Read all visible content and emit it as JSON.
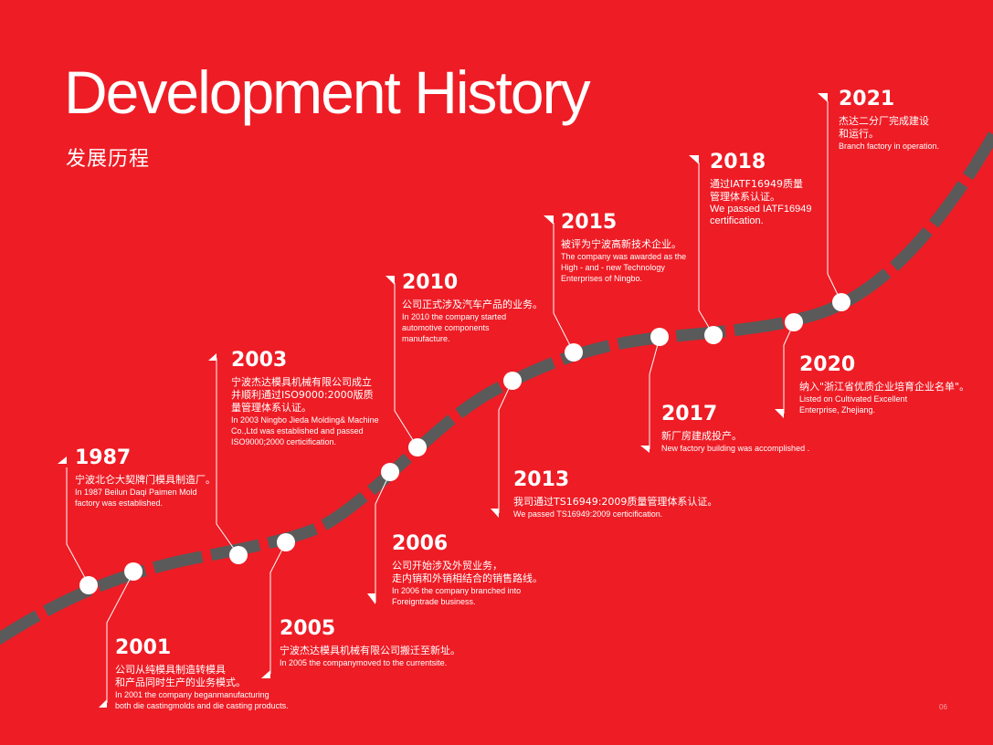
{
  "title": "Development History",
  "subtitle": "发展历程",
  "page_number": "06",
  "colors": {
    "background": "#ee1c25",
    "road": "#5a5a5a",
    "marker": "#ffffff",
    "text": "#ffffff"
  },
  "events": [
    {
      "year": "1987",
      "cn": "宁波北仑大契牌门模具制造厂。",
      "en": "In 1987  Beilun Daqi Paimen Mold\nfactory was established."
    },
    {
      "year": "2001",
      "cn": "公司从纯模具制造转模具\n和产品同时生产的业务模式。",
      "en": "In 2001 the company beganmanufacturing\nboth die castingmolds and die casting products."
    },
    {
      "year": "2003",
      "cn": "宁波杰达模具机械有限公司成立\n并顺利通过ISO9000:2000版质\n量管理体系认证。",
      "en": "In 2003 Ningbo Jieda Molding& Machine\nCo.,Ltd was established and passed\nISO9000;2000 certicification."
    },
    {
      "year": "2005",
      "cn": "宁波杰达模具机械有限公司搬迁至新址。",
      "en": "In 2005 the companymoved to the currentsite."
    },
    {
      "year": "2006",
      "cn": "公司开始涉及外贸业务，\n走内销和外销相结合的销售路线。",
      "en": "In 2006 the company branched into\nForeigntrade business."
    },
    {
      "year": "2010",
      "cn": "公司正式涉及汽车产品的业务。",
      "en": "In 2010 the company started\nautomotive components\nmanufacture."
    },
    {
      "year": "2013",
      "cn": "我司通过TS16949:2009质量管理体系认证。",
      "en": "We passed TS16949:2009  certicification."
    },
    {
      "year": "2015",
      "cn": "被评为宁波高新技术企业。",
      "en": "The company was awarded as the\nHigh - and - new Technology\n Enterprises of Ningbo."
    },
    {
      "year": "2017",
      "cn": "新厂房建成投产。",
      "en": "New factory building  was accomplished ."
    },
    {
      "year": "2018",
      "cn": "通过IATF16949质量\n管理体系认证。",
      "en": "We passed IATF16949\ncertification."
    },
    {
      "year": "2020",
      "cn": "纳入\"浙江省优质企业培育企业名单\"。",
      "en": "Listed on Cultivated Excellent\nEnterprise, Zhejiang."
    },
    {
      "year": "2021",
      "cn": "杰达二分厂完成建设\n和运行。",
      "en": "Branch factory in operation."
    }
  ]
}
